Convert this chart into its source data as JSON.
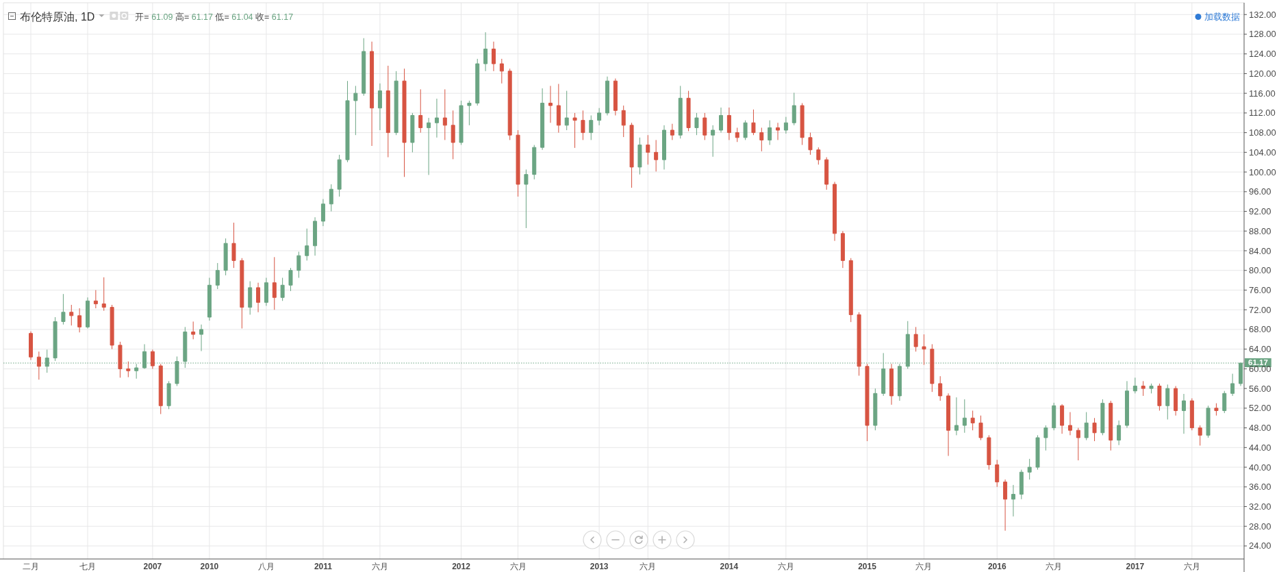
{
  "chart_data": {
    "type": "candlestick",
    "title": "布伦特原油, 1D",
    "subtitle": "开= 61.09 高= 61.17 低= 61.04 收= 61.17",
    "annotations": [
      "加载数据"
    ],
    "categories": [
      "二月",
      null,
      null,
      null,
      null,
      null,
      null,
      "七月",
      null,
      null,
      null,
      null,
      null,
      null,
      null,
      "2007",
      null,
      null,
      null,
      null,
      null,
      null,
      "2010",
      null,
      null,
      null,
      null,
      null,
      null,
      "八月",
      null,
      null,
      null,
      null,
      null,
      null,
      "2011",
      null,
      null,
      null,
      null,
      null,
      null,
      "六月",
      null,
      null,
      null,
      null,
      null,
      null,
      null,
      null,
      null,
      "2012",
      null,
      null,
      null,
      null,
      null,
      null,
      "六月",
      null,
      null,
      null,
      null,
      null,
      null,
      null,
      null,
      null,
      "2013",
      null,
      null,
      null,
      null,
      null,
      "六月",
      null,
      null,
      null,
      null,
      null,
      null,
      null,
      null,
      null,
      "2014",
      null,
      null,
      null,
      null,
      null,
      null,
      "六月",
      null,
      null,
      null,
      null,
      null,
      null,
      null,
      null,
      null,
      "2015",
      null,
      null,
      null,
      null,
      null,
      null,
      "六月",
      null,
      null,
      null,
      null,
      null,
      null,
      null,
      null,
      "2016",
      null,
      null,
      null,
      null,
      null,
      null,
      "六月",
      null,
      null,
      null,
      null,
      null,
      null,
      null,
      null,
      null,
      "2017",
      null,
      null,
      null,
      null,
      null,
      null,
      "六月",
      null,
      null,
      null,
      null,
      null,
      null
    ],
    "ohlc": [
      [
        67.2,
        67.6,
        61.8,
        62.4
      ],
      [
        62.4,
        63.5,
        57.8,
        60.5
      ],
      [
        60.5,
        63.9,
        59.2,
        62.2
      ],
      [
        62.2,
        70.5,
        61.6,
        69.6
      ],
      [
        69.6,
        75.2,
        69.0,
        71.5
      ],
      [
        71.5,
        73.0,
        68.8,
        70.8
      ],
      [
        70.8,
        72.3,
        67.4,
        68.5
      ],
      [
        68.5,
        74.5,
        68.2,
        73.8
      ],
      [
        73.8,
        76.0,
        72.3,
        73.2
      ],
      [
        73.2,
        78.6,
        71.8,
        72.5
      ],
      [
        72.5,
        73.0,
        64.0,
        64.8
      ],
      [
        64.8,
        65.5,
        58.2,
        60.0
      ],
      [
        60.0,
        61.5,
        58.3,
        59.6
      ],
      [
        59.6,
        61.0,
        58.0,
        60.2
      ],
      [
        60.2,
        65.0,
        60.0,
        63.5
      ],
      [
        63.5,
        63.9,
        60.0,
        60.6
      ],
      [
        60.6,
        61.0,
        50.8,
        52.5
      ],
      [
        52.5,
        57.5,
        51.8,
        57.0
      ],
      [
        57.0,
        62.5,
        56.5,
        61.5
      ],
      [
        61.5,
        68.5,
        60.2,
        67.5
      ],
      [
        67.5,
        69.6,
        66.0,
        67.0
      ],
      [
        67.0,
        69.0,
        63.6,
        68.0
      ],
      [
        70.5,
        78.5,
        69.8,
        77.0
      ],
      [
        77.0,
        81.5,
        76.2,
        80.0
      ],
      [
        80.0,
        86.5,
        79.0,
        85.5
      ],
      [
        85.5,
        89.7,
        80.5,
        82.0
      ],
      [
        82.0,
        82.5,
        68.2,
        72.5
      ],
      [
        72.5,
        77.8,
        71.0,
        76.5
      ],
      [
        76.5,
        77.5,
        71.5,
        73.5
      ],
      [
        73.5,
        78.5,
        72.8,
        77.5
      ],
      [
        77.5,
        82.7,
        72.0,
        74.5
      ],
      [
        74.5,
        78.5,
        73.8,
        77.0
      ],
      [
        77.0,
        80.5,
        75.8,
        80.0
      ],
      [
        80.0,
        83.8,
        78.5,
        83.0
      ],
      [
        83.0,
        88.5,
        82.0,
        85.0
      ],
      [
        85.0,
        90.8,
        83.0,
        90.0
      ],
      [
        90.0,
        94.5,
        89.0,
        93.5
      ],
      [
        93.5,
        97.5,
        92.0,
        96.5
      ],
      [
        96.5,
        103.5,
        95.0,
        102.5
      ],
      [
        102.5,
        118.5,
        102.0,
        114.5
      ],
      [
        114.5,
        117.5,
        107.5,
        116.0
      ],
      [
        116.0,
        127.2,
        115.5,
        124.5
      ],
      [
        124.5,
        126.5,
        105.3,
        113.0
      ],
      [
        113.0,
        118.0,
        108.5,
        116.5
      ],
      [
        116.5,
        121.6,
        103.0,
        108.0
      ],
      [
        108.0,
        120.5,
        107.5,
        118.5
      ],
      [
        118.5,
        121.0,
        99.0,
        106.0
      ],
      [
        106.0,
        112.0,
        104.0,
        111.5
      ],
      [
        111.5,
        116.8,
        108.0,
        109.0
      ],
      [
        109.0,
        111.0,
        99.4,
        110.0
      ],
      [
        110.0,
        114.9,
        107.0,
        111.0
      ],
      [
        111.0,
        116.8,
        106.5,
        109.5
      ],
      [
        109.5,
        112.5,
        102.6,
        106.0
      ],
      [
        106.0,
        114.5,
        105.5,
        113.5
      ],
      [
        113.5,
        114.5,
        109.5,
        114.0
      ],
      [
        114.0,
        123.0,
        113.5,
        122.0
      ],
      [
        122.0,
        128.4,
        120.5,
        125.0
      ],
      [
        125.0,
        126.5,
        120.5,
        122.0
      ],
      [
        122.0,
        123.0,
        118.0,
        120.5
      ],
      [
        120.5,
        121.0,
        106.5,
        107.5
      ],
      [
        107.5,
        108.5,
        95.0,
        97.5
      ],
      [
        97.5,
        100.5,
        88.6,
        99.5
      ],
      [
        99.5,
        105.5,
        98.5,
        105.0
      ],
      [
        105.0,
        117.0,
        104.5,
        114.0
      ],
      [
        114.0,
        117.5,
        110.0,
        113.5
      ],
      [
        113.5,
        117.9,
        108.0,
        109.5
      ],
      [
        109.5,
        116.5,
        108.5,
        111.0
      ],
      [
        111.0,
        112.0,
        104.9,
        110.5
      ],
      [
        110.5,
        112.5,
        106.5,
        108.0
      ],
      [
        108.0,
        111.5,
        106.5,
        110.5
      ],
      [
        110.5,
        113.0,
        109.5,
        112.0
      ],
      [
        112.0,
        119.4,
        111.5,
        118.5
      ],
      [
        118.5,
        119.0,
        111.5,
        112.5
      ],
      [
        112.5,
        113.5,
        107.1,
        109.5
      ],
      [
        109.5,
        110.0,
        96.8,
        101.0
      ],
      [
        101.0,
        107.0,
        99.5,
        105.5
      ],
      [
        105.5,
        107.5,
        101.5,
        104.0
      ],
      [
        104.0,
        106.5,
        100.1,
        102.5
      ],
      [
        102.5,
        109.5,
        100.5,
        108.5
      ],
      [
        108.5,
        109.8,
        106.5,
        107.5
      ],
      [
        107.5,
        117.5,
        106.8,
        115.0
      ],
      [
        115.0,
        116.5,
        108.3,
        109.0
      ],
      [
        109.0,
        112.0,
        107.5,
        111.0
      ],
      [
        111.0,
        112.0,
        106.5,
        107.5
      ],
      [
        107.5,
        109.5,
        103.1,
        108.5
      ],
      [
        108.5,
        113.1,
        108.0,
        111.5
      ],
      [
        111.5,
        113.1,
        106.5,
        108.0
      ],
      [
        108.0,
        109.0,
        106.1,
        107.0
      ],
      [
        107.0,
        110.5,
        106.5,
        110.0
      ],
      [
        110.0,
        112.7,
        107.5,
        108.0
      ],
      [
        108.0,
        109.0,
        104.2,
        106.5
      ],
      [
        106.5,
        110.5,
        105.5,
        109.0
      ],
      [
        109.0,
        110.0,
        106.5,
        108.5
      ],
      [
        108.5,
        111.2,
        107.8,
        110.0
      ],
      [
        110.0,
        116.1,
        109.5,
        113.5
      ],
      [
        113.5,
        114.0,
        105.5,
        107.0
      ],
      [
        107.0,
        108.0,
        103.5,
        104.5
      ],
      [
        104.5,
        105.0,
        101.5,
        102.5
      ],
      [
        102.5,
        103.0,
        96.4,
        97.5
      ],
      [
        97.5,
        98.0,
        86.0,
        87.5
      ],
      [
        87.5,
        88.0,
        80.5,
        82.0
      ],
      [
        82.0,
        82.5,
        69.5,
        71.0
      ],
      [
        71.0,
        71.5,
        58.6,
        60.5
      ],
      [
        60.5,
        61.0,
        45.3,
        48.5
      ],
      [
        48.5,
        56.0,
        47.5,
        55.0
      ],
      [
        55.0,
        63.2,
        54.5,
        60.0
      ],
      [
        60.0,
        61.0,
        52.7,
        54.5
      ],
      [
        54.5,
        61.0,
        53.5,
        60.5
      ],
      [
        60.5,
        69.7,
        60.0,
        67.0
      ],
      [
        67.0,
        68.5,
        63.5,
        64.5
      ],
      [
        64.5,
        67.0,
        60.8,
        64.0
      ],
      [
        64.0,
        65.0,
        55.3,
        57.0
      ],
      [
        57.0,
        58.5,
        53.5,
        54.5
      ],
      [
        54.5,
        55.0,
        42.3,
        47.5
      ],
      [
        47.5,
        54.2,
        46.5,
        48.5
      ],
      [
        48.5,
        53.8,
        47.0,
        50.0
      ],
      [
        50.0,
        51.5,
        47.5,
        49.0
      ],
      [
        49.0,
        50.5,
        45.5,
        46.0
      ],
      [
        46.0,
        46.5,
        39.5,
        40.5
      ],
      [
        40.5,
        41.5,
        36.0,
        37.0
      ],
      [
        37.0,
        37.5,
        27.1,
        33.5
      ],
      [
        33.5,
        36.4,
        30.0,
        34.5
      ],
      [
        34.5,
        39.5,
        33.5,
        39.0
      ],
      [
        39.0,
        41.7,
        37.5,
        40.0
      ],
      [
        40.0,
        46.5,
        39.5,
        46.0
      ],
      [
        46.0,
        48.5,
        43.4,
        48.0
      ],
      [
        48.0,
        53.1,
        47.5,
        52.5
      ],
      [
        52.5,
        52.8,
        46.8,
        48.5
      ],
      [
        48.5,
        51.2,
        46.5,
        47.5
      ],
      [
        47.5,
        48.0,
        41.4,
        46.0
      ],
      [
        46.0,
        51.2,
        45.5,
        49.0
      ],
      [
        49.0,
        50.0,
        45.3,
        47.0
      ],
      [
        47.0,
        53.8,
        46.5,
        53.0
      ],
      [
        53.0,
        53.5,
        43.4,
        45.5
      ],
      [
        45.5,
        49.5,
        44.5,
        48.5
      ],
      [
        48.5,
        57.5,
        48.0,
        55.5
      ],
      [
        55.5,
        58.2,
        55.0,
        56.5
      ],
      [
        56.5,
        57.5,
        54.5,
        56.0
      ],
      [
        56.0,
        57.0,
        55.0,
        56.5
      ],
      [
        56.5,
        57.0,
        51.5,
        52.5
      ],
      [
        52.5,
        56.8,
        49.7,
        56.0
      ],
      [
        56.0,
        56.5,
        50.5,
        51.5
      ],
      [
        51.5,
        54.9,
        46.8,
        53.5
      ],
      [
        53.5,
        54.0,
        47.5,
        48.0
      ],
      [
        48.0,
        48.5,
        44.4,
        46.5
      ],
      [
        46.5,
        52.5,
        46.0,
        52.0
      ],
      [
        52.0,
        53.0,
        50.5,
        51.5
      ],
      [
        51.5,
        55.5,
        51.0,
        55.0
      ],
      [
        55.0,
        59.0,
        54.5,
        57.0
      ],
      [
        57.0,
        61.17,
        56.5,
        61.17
      ]
    ],
    "colors": [
      "#d75442",
      "#d75442",
      "#6ba583",
      "#6ba583",
      "#6ba583",
      "#d75442",
      "#d75442",
      "#6ba583",
      "#d75442",
      "#d75442",
      "#d75442",
      "#d75442",
      "#d75442",
      "#6ba583",
      "#6ba583",
      "#d75442",
      "#d75442",
      "#6ba583",
      "#6ba583",
      "#6ba583",
      "#d75442",
      "#6ba583",
      "#6ba583",
      "#6ba583",
      "#6ba583",
      "#d75442",
      "#d75442",
      "#6ba583",
      "#d75442",
      "#6ba583",
      "#d75442",
      "#6ba583",
      "#6ba583",
      "#6ba583",
      "#6ba583",
      "#6ba583",
      "#6ba583",
      "#6ba583",
      "#6ba583",
      "#6ba583",
      "#6ba583",
      "#6ba583",
      "#d75442",
      "#6ba583",
      "#d75442",
      "#6ba583",
      "#d75442",
      "#6ba583",
      "#d75442",
      "#6ba583",
      "#6ba583",
      "#d75442",
      "#d75442",
      "#6ba583",
      "#6ba583",
      "#6ba583",
      "#6ba583",
      "#d75442",
      "#d75442",
      "#d75442",
      "#d75442",
      "#6ba583",
      "#6ba583",
      "#6ba583",
      "#d75442",
      "#d75442",
      "#6ba583",
      "#d75442",
      "#d75442",
      "#6ba583",
      "#6ba583",
      "#6ba583",
      "#d75442",
      "#d75442",
      "#d75442",
      "#6ba583",
      "#d75442",
      "#d75442",
      "#6ba583",
      "#d75442",
      "#6ba583",
      "#d75442",
      "#6ba583",
      "#d75442",
      "#6ba583",
      "#6ba583",
      "#d75442",
      "#d75442",
      "#6ba583",
      "#d75442",
      "#d75442",
      "#6ba583",
      "#d75442",
      "#6ba583",
      "#6ba583",
      "#d75442",
      "#d75442",
      "#d75442",
      "#d75442",
      "#d75442",
      "#d75442",
      "#d75442",
      "#d75442",
      "#d75442",
      "#6ba583",
      "#6ba583",
      "#d75442",
      "#6ba583",
      "#6ba583",
      "#d75442",
      "#d75442",
      "#d75442",
      "#d75442",
      "#d75442",
      "#6ba583",
      "#6ba583",
      "#d75442",
      "#d75442",
      "#d75442",
      "#d75442",
      "#d75442",
      "#6ba583",
      "#6ba583",
      "#6ba583",
      "#6ba583",
      "#6ba583",
      "#6ba583",
      "#d75442",
      "#d75442",
      "#d75442",
      "#6ba583",
      "#d75442",
      "#6ba583",
      "#d75442",
      "#6ba583",
      "#6ba583",
      "#6ba583",
      "#d75442",
      "#6ba583",
      "#d75442",
      "#6ba583",
      "#d75442",
      "#6ba583",
      "#d75442",
      "#d75442",
      "#6ba583",
      "#d75442",
      "#6ba583",
      "#6ba583",
      "#6ba583"
    ],
    "ylim": [
      21.35,
      134.4
    ],
    "yticks": [
      {
        "value": 24,
        "label": "24.00"
      },
      {
        "value": 28,
        "label": "28.00"
      },
      {
        "value": 32,
        "label": "32.00"
      },
      {
        "value": 36,
        "label": "36.00"
      },
      {
        "value": 40,
        "label": "40.00"
      },
      {
        "value": 44,
        "label": "44.00"
      },
      {
        "value": 48,
        "label": "48.00"
      },
      {
        "value": 52,
        "label": "52.00"
      },
      {
        "value": 56,
        "label": "56.00"
      },
      {
        "value": 60,
        "label": "60.00"
      },
      {
        "value": 64,
        "label": "64.00"
      },
      {
        "value": 68,
        "label": "68.00"
      },
      {
        "value": 72,
        "label": "72.00"
      },
      {
        "value": 76,
        "label": "76.00"
      },
      {
        "value": 80,
        "label": "80.00"
      },
      {
        "value": 84,
        "label": "84.00"
      },
      {
        "value": 88,
        "label": "88.00"
      },
      {
        "value": 92,
        "label": "92.00"
      },
      {
        "value": 96,
        "label": "96.00"
      },
      {
        "value": 100,
        "label": "100.00"
      },
      {
        "value": 104,
        "label": "104.00"
      },
      {
        "value": 108,
        "label": "108.00"
      },
      {
        "value": 112,
        "label": "112.00"
      },
      {
        "value": 116,
        "label": "116.00"
      },
      {
        "value": 120,
        "label": "120.00"
      },
      {
        "value": 124,
        "label": "124.00"
      },
      {
        "value": 128,
        "label": "128.00"
      },
      {
        "value": 132,
        "label": "132.00"
      }
    ],
    "grid": true,
    "ref_lines": [
      {
        "axis": "y",
        "value": 61.17,
        "label": "61.17",
        "color": "#6ba583",
        "line_style": "dotted"
      }
    ]
  }
}
